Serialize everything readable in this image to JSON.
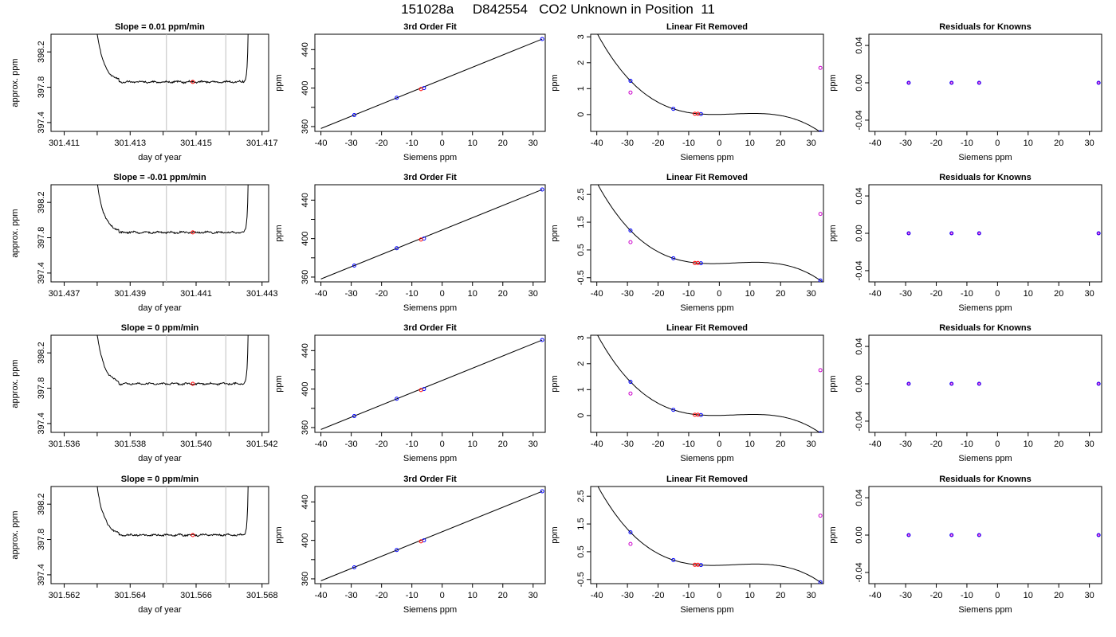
{
  "page": {
    "title": "151028a     D842554   CO2 Unknown in Position  11"
  },
  "colors": {
    "line": "#000000",
    "ref_line": "#bebebe",
    "known": "#0000ff",
    "unknown": "#ff0000",
    "resid": "#cc00cc"
  },
  "chart_data": [
    {
      "type": "line",
      "row": 0,
      "panel": "timeseries",
      "title": "Slope =  0.01  ppm/min",
      "xlabel": "day of year",
      "ylabel": "approx. ppm",
      "xlim": [
        301.4106,
        301.4172
      ],
      "ylim": [
        397.3,
        398.4
      ],
      "xticks": [
        "301.411",
        "301.413",
        "301.415",
        "301.417"
      ],
      "xtick_values": [
        301.411,
        301.413,
        301.415,
        301.417
      ],
      "yticks": [
        "397.4",
        "397.8",
        "398.2"
      ],
      "ytick_values": [
        397.4,
        397.8,
        398.2
      ],
      "x_range": [
        301.4118,
        301.4166
      ],
      "plateau": 397.86,
      "vlines": [
        301.4141,
        301.4159
      ],
      "unknown_point": [
        301.4149,
        397.86
      ]
    },
    {
      "type": "scatter",
      "row": 0,
      "panel": "fit",
      "title": "3rd Order Fit",
      "xlabel": "Siemens ppm",
      "ylabel": "ppm",
      "xlim": [
        -42,
        34
      ],
      "ylim": [
        355,
        456
      ],
      "xticks": [
        "-40",
        "-30",
        "-20",
        "-10",
        "0",
        "10",
        "20",
        "30"
      ],
      "xtick_values": [
        -40,
        -30,
        -20,
        -10,
        0,
        10,
        20,
        30
      ],
      "yticks": [
        "360",
        "400",
        "440"
      ],
      "ytick_values": [
        360,
        400,
        440
      ],
      "line": [
        [
          -40,
          358
        ],
        [
          33,
          451
        ]
      ],
      "known_points": [
        [
          -29,
          372
        ],
        [
          -15,
          390
        ],
        [
          -6,
          400
        ],
        [
          33,
          451
        ]
      ],
      "unknown_points": [
        [
          -7,
          399
        ]
      ]
    },
    {
      "type": "scatter",
      "row": 0,
      "panel": "linear_removed",
      "title": "Linear Fit Removed",
      "xlabel": "Siemens ppm",
      "ylabel": "ppm",
      "xlim": [
        -42,
        34
      ],
      "ylim": [
        -0.65,
        3.1
      ],
      "xticks": [
        "-40",
        "-30",
        "-20",
        "-10",
        "0",
        "10",
        "20",
        "30"
      ],
      "xtick_values": [
        -40,
        -30,
        -20,
        -10,
        0,
        10,
        20,
        30
      ],
      "yticks": [
        "0",
        "1",
        "2",
        "3"
      ],
      "ytick_values": [
        0,
        1,
        2,
        3
      ],
      "curve_points": [
        [
          -29,
          1.3
        ],
        [
          -15,
          0.22
        ],
        [
          -6,
          0.02
        ],
        [
          33,
          -0.68
        ]
      ],
      "known_points": [
        [
          -29,
          1.3
        ],
        [
          -15,
          0.22
        ],
        [
          -6,
          0.02
        ],
        [
          33,
          -0.68
        ]
      ],
      "unknown_points": [
        [
          -8,
          0.03
        ],
        [
          -7,
          0.03
        ]
      ],
      "resid_points": [
        [
          -29,
          0.85
        ],
        [
          33,
          1.8
        ]
      ]
    },
    {
      "type": "scatter",
      "row": 0,
      "panel": "residuals",
      "title": "Residuals for Knowns",
      "xlabel": "Siemens ppm",
      "ylabel": "ppm",
      "xlim": [
        -42,
        34
      ],
      "ylim": [
        -0.052,
        0.052
      ],
      "xticks": [
        "-40",
        "-30",
        "-20",
        "-10",
        "0",
        "10",
        "20",
        "30"
      ],
      "xtick_values": [
        -40,
        -30,
        -20,
        -10,
        0,
        10,
        20,
        30
      ],
      "yticks": [
        "-0.04",
        "0.00",
        "0.04"
      ],
      "ytick_values": [
        -0.04,
        0,
        0.04
      ],
      "resid_points": [
        [
          -29,
          0
        ],
        [
          -15,
          0
        ],
        [
          -6,
          0
        ],
        [
          33,
          0
        ]
      ]
    },
    {
      "type": "line",
      "row": 1,
      "panel": "timeseries",
      "title": "Slope =  -0.01  ppm/min",
      "xlabel": "day of year",
      "ylabel": "approx. ppm",
      "xlim": [
        301.4366,
        301.4432
      ],
      "ylim": [
        397.3,
        398.4
      ],
      "xticks": [
        "301.437",
        "301.439",
        "301.441",
        "301.443"
      ],
      "xtick_values": [
        301.437,
        301.439,
        301.441,
        301.443
      ],
      "yticks": [
        "397.4",
        "397.8",
        "398.2"
      ],
      "ytick_values": [
        397.4,
        397.8,
        398.2
      ],
      "x_range": [
        301.4378,
        301.4426
      ],
      "plateau": 397.86,
      "vlines": [
        301.4401,
        301.4419
      ],
      "unknown_point": [
        301.4409,
        397.86
      ]
    },
    {
      "type": "scatter",
      "row": 1,
      "panel": "fit",
      "title": "3rd Order Fit",
      "xlabel": "Siemens ppm",
      "ylabel": "ppm",
      "xlim": [
        -42,
        34
      ],
      "ylim": [
        355,
        456
      ],
      "xticks": [
        "-40",
        "-30",
        "-20",
        "-10",
        "0",
        "10",
        "20",
        "30"
      ],
      "xtick_values": [
        -40,
        -30,
        -20,
        -10,
        0,
        10,
        20,
        30
      ],
      "yticks": [
        "360",
        "400",
        "440"
      ],
      "ytick_values": [
        360,
        400,
        440
      ],
      "line": [
        [
          -40,
          358
        ],
        [
          33,
          451
        ]
      ],
      "known_points": [
        [
          -29,
          372
        ],
        [
          -15,
          390
        ],
        [
          -6,
          400
        ],
        [
          33,
          451
        ]
      ],
      "unknown_points": [
        [
          -7,
          399
        ]
      ]
    },
    {
      "type": "scatter",
      "row": 1,
      "panel": "linear_removed",
      "title": "Linear Fit Removed",
      "xlabel": "Siemens ppm",
      "ylabel": "ppm",
      "xlim": [
        -42,
        34
      ],
      "ylim": [
        -0.65,
        2.85
      ],
      "xticks": [
        "-40",
        "-30",
        "-20",
        "-10",
        "0",
        "10",
        "20",
        "30"
      ],
      "xtick_values": [
        -40,
        -30,
        -20,
        -10,
        0,
        10,
        20,
        30
      ],
      "yticks": [
        "-0.5",
        "0.5",
        "1.5",
        "2.5"
      ],
      "ytick_values": [
        -0.5,
        0.5,
        1.5,
        2.5
      ],
      "curve_points": [
        [
          -29,
          1.2
        ],
        [
          -15,
          0.2
        ],
        [
          -6,
          0.02
        ],
        [
          33,
          -0.6
        ]
      ],
      "known_points": [
        [
          -29,
          1.2
        ],
        [
          -15,
          0.2
        ],
        [
          -6,
          0.02
        ],
        [
          33,
          -0.6
        ]
      ],
      "unknown_points": [
        [
          -8,
          0.03
        ],
        [
          -7,
          0.03
        ]
      ],
      "resid_points": [
        [
          -29,
          0.78
        ],
        [
          33,
          1.8
        ]
      ]
    },
    {
      "type": "scatter",
      "row": 1,
      "panel": "residuals",
      "title": "Residuals for Knowns",
      "xlabel": "Siemens ppm",
      "ylabel": "ppm",
      "xlim": [
        -42,
        34
      ],
      "ylim": [
        -0.052,
        0.052
      ],
      "xticks": [
        "-40",
        "-30",
        "-20",
        "-10",
        "0",
        "10",
        "20",
        "30"
      ],
      "xtick_values": [
        -40,
        -30,
        -20,
        -10,
        0,
        10,
        20,
        30
      ],
      "yticks": [
        "-0.04",
        "0.00",
        "0.04"
      ],
      "ytick_values": [
        -0.04,
        0,
        0.04
      ],
      "resid_points": [
        [
          -29,
          0
        ],
        [
          -15,
          0
        ],
        [
          -6,
          0
        ],
        [
          33,
          0
        ]
      ]
    },
    {
      "type": "line",
      "row": 2,
      "panel": "timeseries",
      "title": "Slope =  0  ppm/min",
      "xlabel": "day of year",
      "ylabel": "approx. ppm",
      "xlim": [
        301.5356,
        301.5422
      ],
      "ylim": [
        397.3,
        398.4
      ],
      "xticks": [
        "301.536",
        "301.538",
        "301.540",
        "301.542"
      ],
      "xtick_values": [
        301.536,
        301.538,
        301.54,
        301.542
      ],
      "yticks": [
        "397.4",
        "397.8",
        "398.2"
      ],
      "ytick_values": [
        397.4,
        397.8,
        398.2
      ],
      "x_range": [
        301.5368,
        301.5416
      ],
      "plateau": 397.85,
      "vlines": [
        301.5391,
        301.5409
      ],
      "unknown_point": [
        301.5399,
        397.85
      ]
    },
    {
      "type": "scatter",
      "row": 2,
      "panel": "fit",
      "title": "3rd Order Fit",
      "xlabel": "Siemens ppm",
      "ylabel": "ppm",
      "xlim": [
        -42,
        34
      ],
      "ylim": [
        355,
        456
      ],
      "xticks": [
        "-40",
        "-30",
        "-20",
        "-10",
        "0",
        "10",
        "20",
        "30"
      ],
      "xtick_values": [
        -40,
        -30,
        -20,
        -10,
        0,
        10,
        20,
        30
      ],
      "yticks": [
        "360",
        "400",
        "440"
      ],
      "ytick_values": [
        360,
        400,
        440
      ],
      "line": [
        [
          -40,
          358
        ],
        [
          33,
          451
        ]
      ],
      "known_points": [
        [
          -29,
          372
        ],
        [
          -15,
          390
        ],
        [
          -6,
          400
        ],
        [
          33,
          451
        ]
      ],
      "unknown_points": [
        [
          -7,
          399
        ]
      ]
    },
    {
      "type": "scatter",
      "row": 2,
      "panel": "linear_removed",
      "title": "Linear Fit Removed",
      "xlabel": "Siemens ppm",
      "ylabel": "ppm",
      "xlim": [
        -42,
        34
      ],
      "ylim": [
        -0.65,
        3.1
      ],
      "xticks": [
        "-40",
        "-30",
        "-20",
        "-10",
        "0",
        "10",
        "20",
        "30"
      ],
      "xtick_values": [
        -40,
        -30,
        -20,
        -10,
        0,
        10,
        20,
        30
      ],
      "yticks": [
        "0",
        "1",
        "2",
        "3"
      ],
      "ytick_values": [
        0,
        1,
        2,
        3
      ],
      "curve_points": [
        [
          -29,
          1.3
        ],
        [
          -15,
          0.22
        ],
        [
          -6,
          0.02
        ],
        [
          33,
          -0.68
        ]
      ],
      "known_points": [
        [
          -29,
          1.3
        ],
        [
          -15,
          0.22
        ],
        [
          -6,
          0.02
        ],
        [
          33,
          -0.68
        ]
      ],
      "unknown_points": [
        [
          -8,
          0.03
        ],
        [
          -7,
          0.03
        ]
      ],
      "resid_points": [
        [
          -29,
          0.85
        ],
        [
          33,
          1.75
        ]
      ]
    },
    {
      "type": "scatter",
      "row": 2,
      "panel": "residuals",
      "title": "Residuals for Knowns",
      "xlabel": "Siemens ppm",
      "ylabel": "ppm",
      "xlim": [
        -42,
        34
      ],
      "ylim": [
        -0.052,
        0.052
      ],
      "xticks": [
        "-40",
        "-30",
        "-20",
        "-10",
        "0",
        "10",
        "20",
        "30"
      ],
      "xtick_values": [
        -40,
        -30,
        -20,
        -10,
        0,
        10,
        20,
        30
      ],
      "yticks": [
        "-0.04",
        "0.00",
        "0.04"
      ],
      "ytick_values": [
        -0.04,
        0,
        0.04
      ],
      "resid_points": [
        [
          -29,
          0
        ],
        [
          -15,
          0
        ],
        [
          -6,
          0
        ],
        [
          33,
          0
        ]
      ]
    },
    {
      "type": "line",
      "row": 3,
      "panel": "timeseries",
      "title": "Slope =  0  ppm/min",
      "xlabel": "day of year",
      "ylabel": "approx. ppm",
      "xlim": [
        301.5616,
        301.5682
      ],
      "ylim": [
        397.3,
        398.4
      ],
      "xticks": [
        "301.562",
        "301.564",
        "301.566",
        "301.568"
      ],
      "xtick_values": [
        301.562,
        301.564,
        301.566,
        301.568
      ],
      "yticks": [
        "397.4",
        "397.8",
        "398.2"
      ],
      "ytick_values": [
        397.4,
        397.8,
        398.2
      ],
      "x_range": [
        301.5628,
        301.5676
      ],
      "plateau": 397.85,
      "vlines": [
        301.5651,
        301.5669
      ],
      "unknown_point": [
        301.5659,
        397.85
      ]
    },
    {
      "type": "scatter",
      "row": 3,
      "panel": "fit",
      "title": "3rd Order Fit",
      "xlabel": "Siemens ppm",
      "ylabel": "ppm",
      "xlim": [
        -42,
        34
      ],
      "ylim": [
        355,
        456
      ],
      "xticks": [
        "-40",
        "-30",
        "-20",
        "-10",
        "0",
        "10",
        "20",
        "30"
      ],
      "xtick_values": [
        -40,
        -30,
        -20,
        -10,
        0,
        10,
        20,
        30
      ],
      "yticks": [
        "360",
        "400",
        "440"
      ],
      "ytick_values": [
        360,
        400,
        440
      ],
      "line": [
        [
          -40,
          358
        ],
        [
          33,
          451
        ]
      ],
      "known_points": [
        [
          -29,
          372
        ],
        [
          -15,
          390
        ],
        [
          -6,
          400
        ],
        [
          33,
          451
        ]
      ],
      "unknown_points": [
        [
          -7,
          399
        ]
      ]
    },
    {
      "type": "scatter",
      "row": 3,
      "panel": "linear_removed",
      "title": "Linear Fit Removed",
      "xlabel": "Siemens ppm",
      "ylabel": "ppm",
      "xlim": [
        -42,
        34
      ],
      "ylim": [
        -0.65,
        2.85
      ],
      "xticks": [
        "-40",
        "-30",
        "-20",
        "-10",
        "0",
        "10",
        "20",
        "30"
      ],
      "xtick_values": [
        -40,
        -30,
        -20,
        -10,
        0,
        10,
        20,
        30
      ],
      "yticks": [
        "-0.5",
        "0.5",
        "1.5",
        "2.5"
      ],
      "ytick_values": [
        -0.5,
        0.5,
        1.5,
        2.5
      ],
      "curve_points": [
        [
          -29,
          1.2
        ],
        [
          -15,
          0.2
        ],
        [
          -6,
          0.02
        ],
        [
          33,
          -0.6
        ]
      ],
      "known_points": [
        [
          -29,
          1.2
        ],
        [
          -15,
          0.2
        ],
        [
          -6,
          0.02
        ],
        [
          33,
          -0.6
        ]
      ],
      "unknown_points": [
        [
          -8,
          0.03
        ],
        [
          -7,
          0.03
        ]
      ],
      "resid_points": [
        [
          -29,
          0.78
        ],
        [
          33,
          1.8
        ]
      ]
    },
    {
      "type": "scatter",
      "row": 3,
      "panel": "residuals",
      "title": "Residuals for Knowns",
      "xlabel": "Siemens ppm",
      "ylabel": "ppm",
      "xlim": [
        -42,
        34
      ],
      "ylim": [
        -0.052,
        0.052
      ],
      "xticks": [
        "-40",
        "-30",
        "-20",
        "-10",
        "0",
        "10",
        "20",
        "30"
      ],
      "xtick_values": [
        -40,
        -30,
        -20,
        -10,
        0,
        10,
        20,
        30
      ],
      "yticks": [
        "-0.04",
        "0.00",
        "0.04"
      ],
      "ytick_values": [
        -0.04,
        0,
        0.04
      ],
      "resid_points": [
        [
          -29,
          0
        ],
        [
          -15,
          0
        ],
        [
          -6,
          0
        ],
        [
          33,
          0
        ]
      ]
    }
  ]
}
